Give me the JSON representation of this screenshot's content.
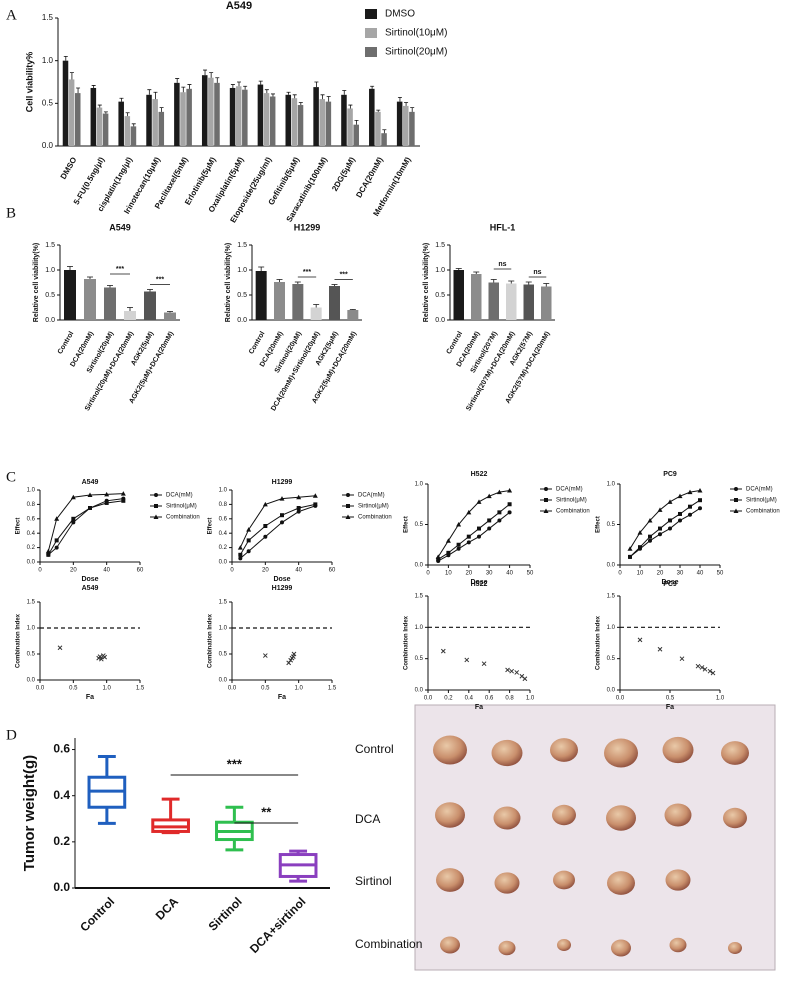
{
  "panel_labels": [
    "A",
    "B",
    "C",
    "D"
  ],
  "photo": {
    "labels": [
      "Control",
      "DCA",
      "Sirtinol",
      "Combination"
    ]
  },
  "chart_data": [
    {
      "type": "bar",
      "title": "A549",
      "y_label": "Cell  viability%",
      "categories": [
        "DMSO",
        "5-FU(0.5ng/μl)",
        "cisplatin(1ng/μl)",
        "Irinotecan(10μM)",
        "Paclitaxel(5nM)",
        "Erlotinib(5μM)",
        "Oxaliplatin(5μM)",
        "Etoposide(25ug/ml)",
        "Gefitinib(5μM)",
        "Saracatinib(100nM)",
        "2DG(5μM)",
        "DCA(20mM)",
        "Metformin(10mM)"
      ],
      "series": [
        {
          "name": "DMSO",
          "color": "#1a1a1a",
          "values": [
            1.0,
            0.68,
            0.52,
            0.6,
            0.74,
            0.83,
            0.68,
            0.72,
            0.6,
            0.69,
            0.6,
            0.67,
            0.52
          ],
          "errors": [
            0.05,
            0.03,
            0.04,
            0.06,
            0.05,
            0.06,
            0.04,
            0.04,
            0.03,
            0.06,
            0.05,
            0.03,
            0.05
          ]
        },
        {
          "name": "Sirtinol(10μM)",
          "color": "#a6a6a6",
          "values": [
            0.78,
            0.45,
            0.35,
            0.55,
            0.63,
            0.8,
            0.7,
            0.62,
            0.56,
            0.55,
            0.44,
            0.4,
            0.47
          ],
          "errors": [
            0.08,
            0.03,
            0.04,
            0.08,
            0.06,
            0.06,
            0.05,
            0.04,
            0.04,
            0.05,
            0.04,
            0.02,
            0.04
          ]
        },
        {
          "name": "Sirtinol(20μM)",
          "color": "#6e6e6e",
          "values": [
            0.62,
            0.38,
            0.23,
            0.4,
            0.67,
            0.74,
            0.66,
            0.58,
            0.48,
            0.52,
            0.25,
            0.15,
            0.4
          ],
          "errors": [
            0.06,
            0.02,
            0.03,
            0.05,
            0.05,
            0.06,
            0.04,
            0.03,
            0.03,
            0.06,
            0.05,
            0.04,
            0.05
          ]
        }
      ],
      "ylim": [
        0,
        1.5
      ],
      "yticks": [
        {
          "value": 0,
          "label": "0.0"
        },
        0.5,
        {
          "value": 1,
          "label": "1.0"
        },
        1.5
      ],
      "legend": "upper right"
    },
    {
      "type": "bar",
      "title": "A549",
      "y_label": "Relative cell viability(%)",
      "categories": [
        "Control",
        "DCA(20mM)",
        "Sirtinol(20μM)",
        "Sirtinol(20μM)+DCA(20mM)",
        "AGK2(5μM)",
        "AGK2(5μM)+DCA(20mM)"
      ],
      "values": [
        1.0,
        0.82,
        0.65,
        0.18,
        0.57,
        0.15
      ],
      "errors": [
        0.07,
        0.04,
        0.04,
        0.07,
        0.04,
        0.02
      ],
      "colors": [
        "#1a1a1a",
        "#8c8c8c",
        "#6e6e6e",
        "#d3d3d3",
        "#555555",
        "#8a8a8a"
      ],
      "ylim": [
        0,
        1.5
      ],
      "yticks": [
        {
          "value": 0,
          "label": "0.0"
        },
        0.5,
        {
          "value": 1,
          "label": "1.0"
        },
        1.5
      ],
      "annotations": [
        "***",
        "***"
      ]
    },
    {
      "type": "bar",
      "title": "H1299",
      "y_label": "Relative cell viability(%)",
      "categories": [
        "Control",
        "DCA(20mM)",
        "Sirtinol(20μM)",
        "DCA(20mM)+Sirtinol(20μM)",
        "AGK2(5μM)",
        "AGK2(5μM)+DCA(20mM)"
      ],
      "values": [
        0.98,
        0.76,
        0.72,
        0.25,
        0.68,
        0.2
      ],
      "errors": [
        0.08,
        0.05,
        0.04,
        0.06,
        0.03,
        0.01
      ],
      "colors": [
        "#1a1a1a",
        "#8c8c8c",
        "#6e6e6e",
        "#d3d3d3",
        "#555555",
        "#8a8a8a"
      ],
      "ylim": [
        0,
        1.5
      ],
      "yticks": [
        {
          "value": 0,
          "label": "0.0"
        },
        0.5,
        {
          "value": 1,
          "label": "1.0"
        },
        1.5
      ],
      "annotations": [
        "***",
        "***"
      ]
    },
    {
      "type": "bar",
      "title": "HFL-1",
      "y_label": "Relative cell viability(%)",
      "categories": [
        "Control",
        "DCA(20mM)",
        "Sirtinol(20?M)",
        "Sirtinol(20?M)+DCA(20mM)",
        "AGK2(5?M)",
        "AGK2(5?M)+DCA(20mM)"
      ],
      "values": [
        1.0,
        0.92,
        0.75,
        0.73,
        0.71,
        0.67
      ],
      "errors": [
        0.03,
        0.04,
        0.06,
        0.05,
        0.05,
        0.06
      ],
      "colors": [
        "#1a1a1a",
        "#8c8c8c",
        "#6e6e6e",
        "#d3d3d3",
        "#555555",
        "#8a8a8a"
      ],
      "ylim": [
        0,
        1.5
      ],
      "yticks": [
        {
          "value": 0,
          "label": "0.0"
        },
        0.5,
        {
          "value": 1,
          "label": "1.0"
        },
        1.5
      ],
      "annotations": [
        "ns",
        "ns"
      ]
    },
    {
      "type": "line",
      "title": "A549",
      "x_label": "Dose",
      "y_label": "Effect",
      "x": [
        5,
        10,
        20,
        30,
        40,
        50
      ],
      "series": [
        {
          "name": "DCA(mM)",
          "color": "#111111",
          "values": [
            0.1,
            0.2,
            0.55,
            0.75,
            0.85,
            0.88
          ]
        },
        {
          "name": "Sirtinol(μM)",
          "color": "#111111",
          "values": [
            0.1,
            0.3,
            0.6,
            0.75,
            0.82,
            0.85
          ]
        },
        {
          "name": "Combination",
          "color": "#111111",
          "values": [
            0.15,
            0.6,
            0.9,
            0.93,
            0.94,
            0.95
          ]
        }
      ],
      "xlim": [
        0,
        60
      ],
      "xticks": [
        0,
        20,
        40,
        60
      ],
      "ylim": [
        0,
        1
      ],
      "yticks": [
        {
          "value": 0,
          "label": "0.0"
        },
        0.2,
        0.4,
        0.6,
        0.8,
        {
          "value": 1,
          "label": "1.0"
        }
      ]
    },
    {
      "type": "line",
      "title": "H1299",
      "x_label": "Dose",
      "y_label": "Effect",
      "x": [
        5,
        10,
        20,
        30,
        40,
        50
      ],
      "series": [
        {
          "name": "DCA(mM)",
          "color": "#111111",
          "values": [
            0.05,
            0.15,
            0.35,
            0.55,
            0.7,
            0.78
          ]
        },
        {
          "name": "Sirtinol(μM)",
          "color": "#111111",
          "values": [
            0.1,
            0.3,
            0.5,
            0.65,
            0.75,
            0.8
          ]
        },
        {
          "name": "Combination",
          "color": "#111111",
          "values": [
            0.2,
            0.45,
            0.8,
            0.88,
            0.9,
            0.92
          ]
        }
      ],
      "xlim": [
        0,
        60
      ],
      "xticks": [
        0,
        20,
        40,
        60
      ],
      "ylim": [
        0,
        1
      ],
      "yticks": [
        {
          "value": 0,
          "label": "0.0"
        },
        0.2,
        0.4,
        0.6,
        0.8,
        {
          "value": 1,
          "label": "1.0"
        }
      ]
    },
    {
      "type": "line",
      "title": "H522",
      "x_label": "Dose",
      "y_label": "Effect",
      "x": [
        5,
        10,
        15,
        20,
        25,
        30,
        35,
        40
      ],
      "series": [
        {
          "name": "DCA(mM)",
          "color": "#111111",
          "values": [
            0.05,
            0.12,
            0.2,
            0.28,
            0.35,
            0.45,
            0.55,
            0.65
          ]
        },
        {
          "name": "Sirtinol(μM)",
          "color": "#111111",
          "values": [
            0.07,
            0.15,
            0.25,
            0.35,
            0.45,
            0.55,
            0.65,
            0.75
          ]
        },
        {
          "name": "Combination",
          "color": "#111111",
          "values": [
            0.1,
            0.3,
            0.5,
            0.65,
            0.78,
            0.85,
            0.9,
            0.92
          ]
        }
      ],
      "xlim": [
        0,
        50
      ],
      "xticks": [
        0,
        10,
        20,
        30,
        40,
        50
      ],
      "ylim": [
        0,
        1
      ],
      "yticks": [
        {
          "value": 0,
          "label": "0.0"
        },
        0.5,
        {
          "value": 1,
          "label": "1.0"
        }
      ]
    },
    {
      "type": "line",
      "title": "PC9",
      "x_label": "Dose",
      "y_label": "Effect",
      "x": [
        5,
        10,
        15,
        20,
        25,
        30,
        35,
        40
      ],
      "series": [
        {
          "name": "DCA(mM)",
          "color": "#111111",
          "values": [
            0.1,
            0.2,
            0.3,
            0.38,
            0.45,
            0.55,
            0.62,
            0.7
          ]
        },
        {
          "name": "Sirtinol(μM)",
          "color": "#111111",
          "values": [
            0.1,
            0.22,
            0.35,
            0.45,
            0.55,
            0.63,
            0.72,
            0.8
          ]
        },
        {
          "name": "Combination",
          "color": "#111111",
          "values": [
            0.2,
            0.4,
            0.55,
            0.68,
            0.78,
            0.85,
            0.9,
            0.92
          ]
        }
      ],
      "xlim": [
        0,
        50
      ],
      "xticks": [
        0,
        10,
        20,
        30,
        40,
        50
      ],
      "ylim": [
        0,
        1
      ],
      "yticks": [
        {
          "value": 0,
          "label": "0.0"
        },
        0.5,
        {
          "value": 1,
          "label": "1.0"
        }
      ]
    },
    {
      "type": "scatter",
      "title": "A549",
      "x_label": "Fa",
      "y_label": "Combination Index",
      "x": [
        0.3,
        0.88,
        0.9,
        0.92,
        0.95,
        0.97
      ],
      "values": [
        0.62,
        0.42,
        0.45,
        0.4,
        0.47,
        0.44
      ],
      "color": "#333333",
      "reference_line": 1,
      "xlim": [
        0,
        1.5
      ],
      "xticks": [
        {
          "value": 0,
          "label": "0.0"
        },
        0.5,
        {
          "value": 1,
          "label": "1.0"
        },
        1.5
      ],
      "ylim": [
        0,
        1.5
      ],
      "yticks": [
        {
          "value": 0,
          "label": "0.0"
        },
        0.5,
        {
          "value": 1,
          "label": "1.0"
        },
        1.5
      ]
    },
    {
      "type": "scatter",
      "title": "H1299",
      "x_label": "Fa",
      "y_label": "Combination Index",
      "x": [
        0.5,
        0.85,
        0.88,
        0.9,
        0.92,
        0.93
      ],
      "values": [
        0.47,
        0.33,
        0.38,
        0.42,
        0.45,
        0.5
      ],
      "color": "#333333",
      "reference_line": 1,
      "xlim": [
        0,
        1.5
      ],
      "xticks": [
        {
          "value": 0,
          "label": "0.0"
        },
        0.5,
        {
          "value": 1,
          "label": "1.0"
        },
        1.5
      ],
      "ylim": [
        0,
        1.5
      ],
      "yticks": [
        {
          "value": 0,
          "label": "0.0"
        },
        0.5,
        {
          "value": 1,
          "label": "1.0"
        },
        1.5
      ]
    },
    {
      "type": "scatter",
      "title": "H522",
      "x_label": "Fa",
      "y_label": "Combination Index",
      "x": [
        0.15,
        0.38,
        0.55,
        0.78,
        0.82,
        0.87,
        0.92,
        0.95
      ],
      "values": [
        0.62,
        0.48,
        0.42,
        0.32,
        0.3,
        0.28,
        0.22,
        0.18
      ],
      "color": "#333333",
      "reference_line": 1,
      "xlim": [
        0,
        1
      ],
      "xticks": [
        {
          "value": 0,
          "label": "0.0"
        },
        0.2,
        0.4,
        0.6,
        0.8,
        {
          "value": 1,
          "label": "1.0"
        }
      ],
      "ylim": [
        0,
        1.5
      ],
      "yticks": [
        {
          "value": 0,
          "label": "0.0"
        },
        0.5,
        {
          "value": 1,
          "label": "1.0"
        },
        1.5
      ]
    },
    {
      "type": "scatter",
      "title": "PC9",
      "x_label": "Fa",
      "y_label": "Combination Index",
      "x": [
        0.2,
        0.4,
        0.62,
        0.78,
        0.82,
        0.85,
        0.9,
        0.93
      ],
      "values": [
        0.8,
        0.65,
        0.5,
        0.38,
        0.36,
        0.33,
        0.3,
        0.27
      ],
      "color": "#333333",
      "reference_line": 1,
      "xlim": [
        0,
        1
      ],
      "xticks": [
        {
          "value": 0,
          "label": "0.0"
        },
        0.5,
        {
          "value": 1,
          "label": "1.0"
        }
      ],
      "ylim": [
        0,
        1.5
      ],
      "yticks": [
        {
          "value": 0,
          "label": "0.0"
        },
        0.5,
        {
          "value": 1,
          "label": "1.0"
        },
        1.5
      ]
    },
    {
      "type": "box",
      "y_label": "Tumor weight(g)",
      "categories": [
        "Control",
        "DCA",
        "Sirtinol",
        "DCA+sirtinol"
      ],
      "colors": [
        "#1f5fbf",
        "#e02a2a",
        "#2fbf4f",
        "#8a3fbf"
      ],
      "stats": [
        {
          "min": 0.28,
          "q1": 0.35,
          "median": 0.42,
          "q3": 0.48,
          "max": 0.57
        },
        {
          "min": 0.24,
          "q1": 0.245,
          "median": 0.265,
          "q3": 0.295,
          "max": 0.385
        },
        {
          "min": 0.165,
          "q1": 0.21,
          "median": 0.245,
          "q3": 0.285,
          "max": 0.35
        },
        {
          "min": 0.03,
          "q1": 0.05,
          "median": 0.1,
          "q3": 0.145,
          "max": 0.16
        }
      ],
      "ylim": [
        0,
        0.65
      ],
      "yticks": [
        {
          "value": 0,
          "label": "0.0"
        },
        0.2,
        0.4,
        0.6
      ],
      "annotations": [
        "***",
        "**"
      ]
    }
  ]
}
